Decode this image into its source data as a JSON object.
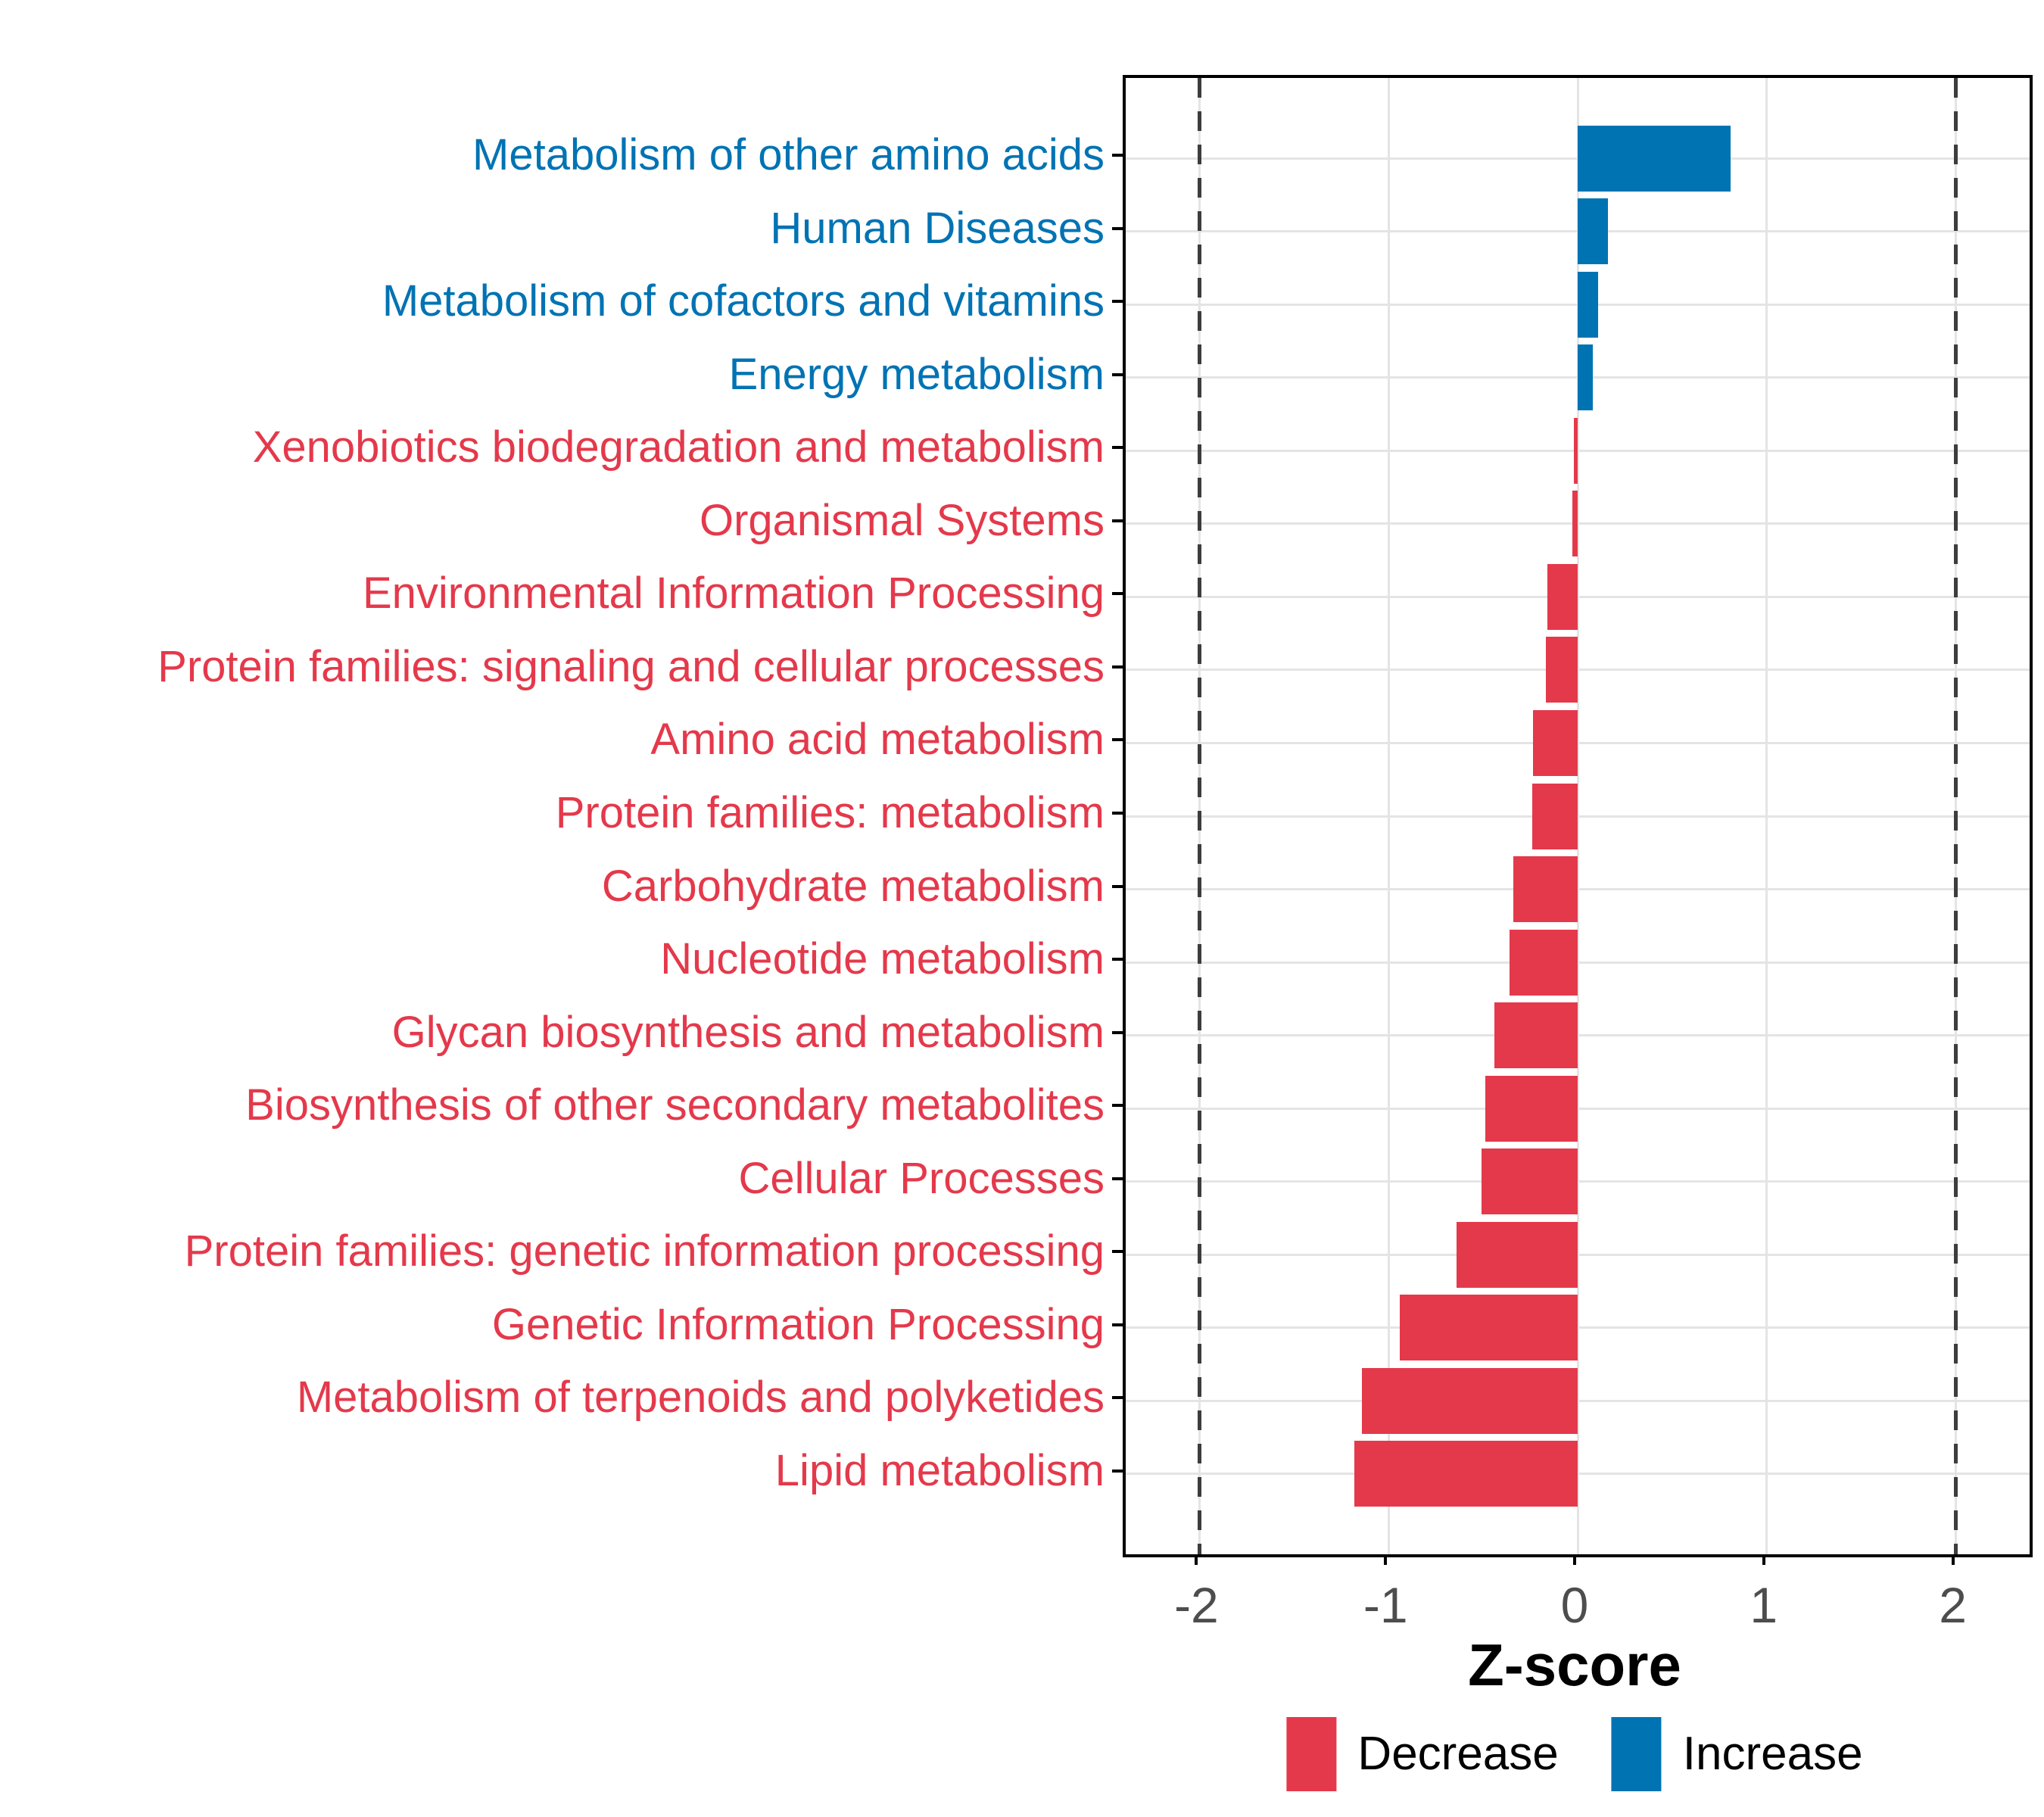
{
  "figure": {
    "background": "#ffffff",
    "x_axis_title": "Z-score",
    "legend": {
      "items": [
        {
          "label": "Decrease",
          "color": "#e4394b"
        },
        {
          "label": "Increase",
          "color": "#0073b3"
        }
      ]
    }
  },
  "chart_data": {
    "type": "bar",
    "orientation": "horizontal",
    "title": "",
    "xlabel": "Z-score",
    "ylabel": "",
    "xlim": [
      -2.39,
      2.39
    ],
    "x_ticks": [
      -2,
      -1,
      0,
      1,
      2
    ],
    "x_tick_labels": [
      "-2",
      "-1",
      "0",
      "1",
      "2"
    ],
    "grid": true,
    "reference_lines": {
      "x": [
        -2,
        2
      ],
      "style": "dashed",
      "color": "#3d3d3d"
    },
    "legend_position": "bottom",
    "bar_width_fraction": 0.9,
    "categories": [
      "Metabolism of other amino acids",
      "Human Diseases",
      "Metabolism of cofactors and vitamins",
      "Energy metabolism",
      "Xenobiotics biodegradation and metabolism",
      "Organismal Systems",
      "Environmental Information Processing",
      "Protein families: signaling and cellular processes",
      "Amino acid metabolism",
      "Protein families: metabolism",
      "Carbohydrate metabolism",
      "Nucleotide metabolism",
      "Glycan biosynthesis and metabolism",
      "Biosynthesis of other secondary metabolites",
      "Cellular Processes",
      "Protein families: genetic information processing",
      "Genetic Information Processing",
      "Metabolism of terpenoids and polyketides",
      "Lipid metabolism"
    ],
    "values": [
      0.81,
      0.16,
      0.11,
      0.08,
      -0.02,
      -0.03,
      -0.16,
      -0.17,
      -0.235,
      -0.24,
      -0.34,
      -0.36,
      -0.44,
      -0.49,
      -0.51,
      -0.64,
      -0.94,
      -1.14,
      -1.18
    ],
    "groups": [
      "Increase",
      "Increase",
      "Increase",
      "Increase",
      "Decrease",
      "Decrease",
      "Decrease",
      "Decrease",
      "Decrease",
      "Decrease",
      "Decrease",
      "Decrease",
      "Decrease",
      "Decrease",
      "Decrease",
      "Decrease",
      "Decrease",
      "Decrease",
      "Decrease"
    ],
    "colors": {
      "Increase": "#0073b3",
      "Decrease": "#e4394b"
    }
  }
}
